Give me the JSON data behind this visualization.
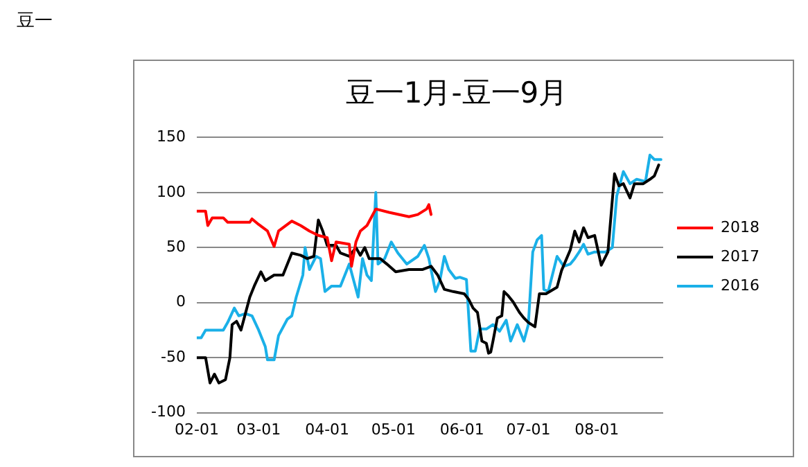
{
  "chart_data": {
    "type": "line",
    "title": "豆一1月-豆一9月",
    "annotations": [
      "豆一"
    ],
    "xlim": [
      "--02-01",
      "--08-31"
    ],
    "xticks": [
      {
        "value": "--02-01",
        "label": "02-01"
      },
      {
        "value": "--03-01",
        "label": "03-01"
      },
      {
        "value": "--04-01",
        "label": "04-01"
      },
      {
        "value": "--05-01",
        "label": "05-01"
      },
      {
        "value": "--06-01",
        "label": "06-01"
      },
      {
        "value": "--07-01",
        "label": "07-01"
      },
      {
        "value": "--08-01",
        "label": "08-01"
      }
    ],
    "ylim": [
      -100,
      150
    ],
    "yticks": [
      -100,
      -50,
      0,
      50,
      100,
      150
    ],
    "grid": "y",
    "legend": "right",
    "marker": "none",
    "line_style": "solid",
    "series": [
      {
        "name": "2018",
        "color": "#ff0000",
        "x": [
          "--02-01",
          "--02-05",
          "--02-06",
          "--02-08",
          "--02-13",
          "--02-15",
          "--02-25",
          "--02-26",
          "--03-01",
          "--03-05",
          "--03-08",
          "--03-10",
          "--03-16",
          "--03-20",
          "--03-24",
          "--03-28",
          "--04-01",
          "--04-03",
          "--04-05",
          "--04-11",
          "--04-12",
          "--04-14",
          "--04-16",
          "--04-19",
          "--04-23",
          "--04-29",
          "--05-08",
          "--05-12",
          "--05-16",
          "--05-17",
          "--05-18"
        ],
        "values": [
          83,
          83,
          70,
          77,
          77,
          73,
          73,
          76,
          71,
          65,
          51,
          65,
          74,
          70,
          65,
          61,
          59,
          38,
          55,
          53,
          33,
          55,
          65,
          70,
          85,
          82,
          78,
          80,
          85,
          89,
          80
        ]
      },
      {
        "name": "2017",
        "color": "#000000",
        "x": [
          "--02-01",
          "--02-05",
          "--02-07",
          "--02-09",
          "--02-11",
          "--02-14",
          "--02-16",
          "--02-17",
          "--02-19",
          "--02-21",
          "--02-23",
          "--02-25",
          "--02-27",
          "--03-02",
          "--03-04",
          "--03-08",
          "--03-12",
          "--03-16",
          "--03-20",
          "--03-23",
          "--03-26",
          "--03-28",
          "--03-30",
          "--04-01",
          "--04-05",
          "--04-07",
          "--04-11",
          "--04-14",
          "--04-16",
          "--04-18",
          "--04-20",
          "--04-25",
          "--04-28",
          "--05-02",
          "--05-08",
          "--05-14",
          "--05-18",
          "--05-21",
          "--05-24",
          "--05-28",
          "--06-02",
          "--06-04",
          "--06-06",
          "--06-08",
          "--06-10",
          "--06-12",
          "--06-13",
          "--06-14",
          "--06-15",
          "--06-17",
          "--06-19",
          "--06-20",
          "--06-22",
          "--06-24",
          "--06-27",
          "--06-29",
          "--07-01",
          "--07-04",
          "--07-06",
          "--07-09",
          "--07-14",
          "--07-16",
          "--07-20",
          "--07-22",
          "--07-24",
          "--07-26",
          "--07-28",
          "--07-31",
          "--08-03",
          "--08-06",
          "--08-09",
          "--08-11",
          "--08-13",
          "--08-16",
          "--08-18",
          "--08-22",
          "--08-25",
          "--08-27",
          "--08-29"
        ],
        "values": [
          -50,
          -50,
          -73,
          -65,
          -73,
          -70,
          -50,
          -20,
          -17,
          -25,
          -10,
          5,
          15,
          28,
          20,
          25,
          25,
          45,
          43,
          40,
          42,
          75,
          65,
          52,
          52,
          45,
          42,
          50,
          43,
          50,
          40,
          40,
          35,
          28,
          30,
          30,
          33,
          25,
          12,
          10,
          8,
          3,
          -5,
          -9,
          -35,
          -37,
          -46,
          -45,
          -35,
          -14,
          -12,
          10,
          6,
          1,
          -9,
          -14,
          -18,
          -22,
          8,
          8,
          14,
          29,
          48,
          65,
          55,
          68,
          59,
          61,
          34,
          46,
          117,
          106,
          108,
          95,
          108,
          108,
          112,
          115,
          125
        ]
      },
      {
        "name": "2016",
        "color": "#1ab0e8",
        "x": [
          "--02-01",
          "--02-03",
          "--02-05",
          "--02-13",
          "--02-15",
          "--02-18",
          "--02-20",
          "--02-23",
          "--02-26",
          "--03-01",
          "--03-04",
          "--03-05",
          "--03-08",
          "--03-10",
          "--03-14",
          "--03-16",
          "--03-18",
          "--03-21",
          "--03-22",
          "--03-24",
          "--03-27",
          "--03-29",
          "--03-31",
          "--04-03",
          "--04-07",
          "--04-11",
          "--04-13",
          "--04-15",
          "--04-17",
          "--04-19",
          "--04-21",
          "--04-23",
          "--04-24",
          "--04-27",
          "--04-30",
          "--05-03",
          "--05-07",
          "--05-12",
          "--05-15",
          "--05-17",
          "--05-20",
          "--05-22",
          "--05-24",
          "--05-26",
          "--05-29",
          "--05-31",
          "--06-03",
          "--06-05",
          "--06-07",
          "--06-09",
          "--06-12",
          "--06-15",
          "--06-18",
          "--06-21",
          "--06-23",
          "--06-26",
          "--06-29",
          "--07-01",
          "--07-03",
          "--07-05",
          "--07-07",
          "--07-08",
          "--07-10",
          "--07-14",
          "--07-17",
          "--07-20",
          "--07-22",
          "--07-24",
          "--07-26",
          "--07-28",
          "--07-31",
          "--08-05",
          "--08-08",
          "--08-10",
          "--08-13",
          "--08-16",
          "--08-19",
          "--08-23",
          "--08-25",
          "--08-27",
          "--08-30"
        ],
        "values": [
          -32,
          -32,
          -25,
          -25,
          -18,
          -5,
          -12,
          -10,
          -12,
          -25,
          -40,
          -52,
          -52,
          -30,
          -15,
          -12,
          5,
          25,
          50,
          30,
          42,
          40,
          10,
          15,
          15,
          35,
          20,
          5,
          40,
          25,
          20,
          100,
          35,
          40,
          55,
          45,
          35,
          42,
          52,
          40,
          10,
          20,
          42,
          30,
          22,
          23,
          21,
          -44,
          -44,
          -24,
          -24,
          -20,
          -26,
          -16,
          -35,
          -20,
          -35,
          -20,
          46,
          57,
          61,
          12,
          10,
          42,
          33,
          35,
          40,
          46,
          53,
          44,
          46,
          46,
          50,
          97,
          119,
          108,
          112,
          110,
          134,
          130,
          130
        ]
      }
    ]
  }
}
